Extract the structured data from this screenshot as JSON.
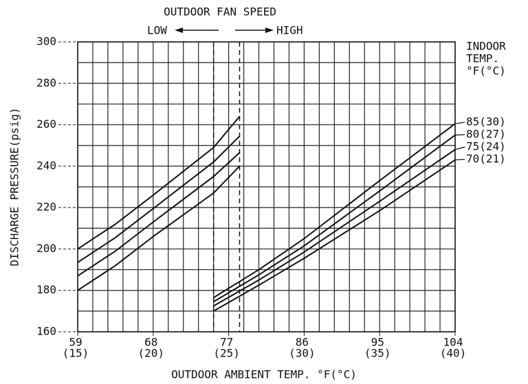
{
  "chart_data": {
    "type": "line",
    "title": "OUTDOOR FAN SPEED",
    "fan_speed_low": "LOW",
    "fan_speed_high": "HIGH",
    "fan_speed_lines": [
      75.2,
      78.3
    ],
    "xlabel": "OUTDOOR AMBIENT TEMP. °F(°C)",
    "ylabel": "DISCHARGE PRESSURE(psig)",
    "legend_title": [
      "INDOOR",
      "TEMP.",
      "°F(°C)"
    ],
    "legend_position": "right",
    "xlim": [
      59,
      104
    ],
    "ylim": [
      160,
      300
    ],
    "xticks": [
      59,
      68,
      77,
      86,
      95,
      104
    ],
    "xtick_sublabels": [
      "(15)",
      "(20)",
      "(25)",
      "(30)",
      "(35)",
      "(40)"
    ],
    "yticks": [
      160,
      180,
      200,
      220,
      240,
      260,
      280,
      300
    ],
    "xgrid": [
      59,
      60.8,
      62.6,
      64.4,
      66.2,
      68,
      69.8,
      71.6,
      73.4,
      75.2,
      77,
      78.8,
      80.6,
      82.4,
      84.2,
      86,
      87.8,
      89.6,
      91.4,
      93.2,
      95,
      96.8,
      98.6,
      100.4,
      102.2,
      104
    ],
    "ygrid": [
      160,
      170,
      180,
      190,
      200,
      210,
      220,
      230,
      240,
      250,
      260,
      270,
      280,
      290,
      300
    ],
    "grid": true,
    "color": "#111111",
    "series": [
      {
        "name": "85(30)",
        "x": [
          59,
          63.5,
          68,
          75.2,
          78.3,
          null,
          75.2,
          80.6,
          86,
          95,
          104
        ],
        "values": [
          200,
          212,
          226,
          249,
          264,
          null,
          176.5,
          190,
          205,
          233,
          260.5
        ]
      },
      {
        "name": "80(27)",
        "x": [
          59,
          63.5,
          68,
          75.2,
          78.3,
          null,
          75.2,
          80.6,
          86,
          95,
          104
        ],
        "values": [
          193.5,
          205.5,
          219.5,
          242,
          254.5,
          null,
          174.5,
          187.5,
          201.5,
          228,
          255
        ]
      },
      {
        "name": "75(24)",
        "x": [
          59,
          63.5,
          68,
          75.2,
          78.3,
          null,
          75.2,
          80.6,
          86,
          95,
          104
        ],
        "values": [
          187,
          199,
          213,
          235,
          246.5,
          null,
          172.5,
          185,
          198.5,
          223,
          248
        ]
      },
      {
        "name": "70(21)",
        "x": [
          59,
          63.5,
          68,
          75.2,
          78.3,
          null,
          75.2,
          80.6,
          86,
          95,
          104
        ],
        "values": [
          180,
          192,
          206,
          227,
          240,
          null,
          170,
          182.5,
          195.5,
          218.5,
          243
        ]
      }
    ]
  }
}
